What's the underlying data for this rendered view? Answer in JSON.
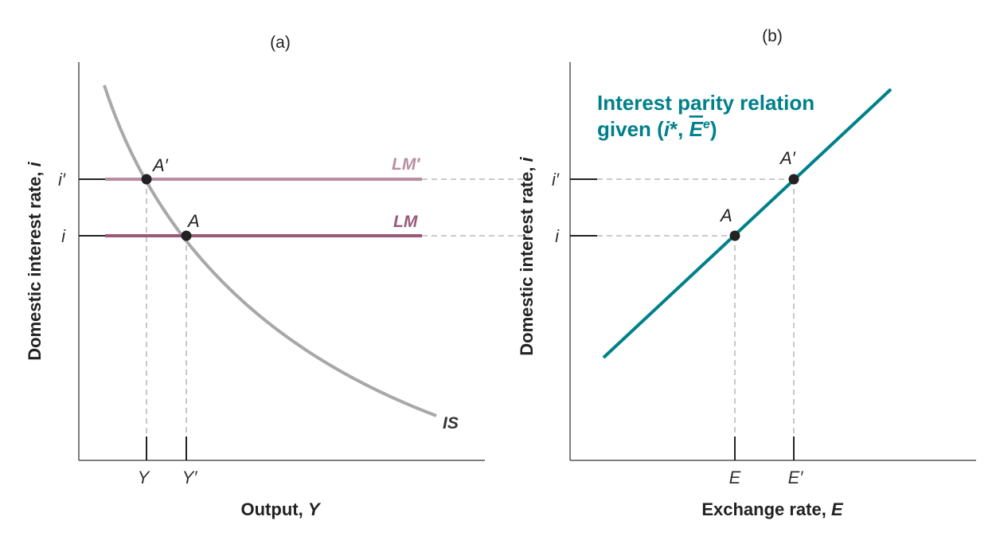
{
  "panels": {
    "a": {
      "label": "(a)",
      "x_axis_prefix": "Output, ",
      "x_axis_var": "Y",
      "y_axis_prefix": "Domestic interest rate, ",
      "y_axis_var": "i",
      "y_ticks": {
        "high": "i′",
        "low": "i"
      },
      "x_ticks": {
        "left": "Y",
        "right": "Y′"
      },
      "points": {
        "initial": "A",
        "new": "A′"
      },
      "curves": {
        "is": "IS",
        "lm": "LM",
        "lm_new": "LM′"
      }
    },
    "b": {
      "label": "(b)",
      "x_axis_prefix": "Exchange rate, ",
      "x_axis_var": "E",
      "y_axis_prefix": "Domestic interest rate, ",
      "y_axis_var": "i",
      "y_ticks": {
        "high": "i′",
        "low": "i"
      },
      "x_ticks": {
        "left": "E",
        "right": "E′"
      },
      "points": {
        "initial": "A",
        "new": "A′"
      },
      "relation_line1": "Interest parity relation",
      "relation_line2_prefix": "given (",
      "relation_istar": "i",
      "relation_star": "*",
      "relation_sep": ", ",
      "relation_ebar": "E",
      "relation_sup": "e",
      "relation_close": ")"
    }
  },
  "colors": {
    "axis": "#555555",
    "guide": "#aaaaaa",
    "is_curve": "#a8a8aa",
    "lm": "#9b5878",
    "lm_new": "#b98ea3",
    "parity": "#00808a",
    "point": "#222222"
  }
}
